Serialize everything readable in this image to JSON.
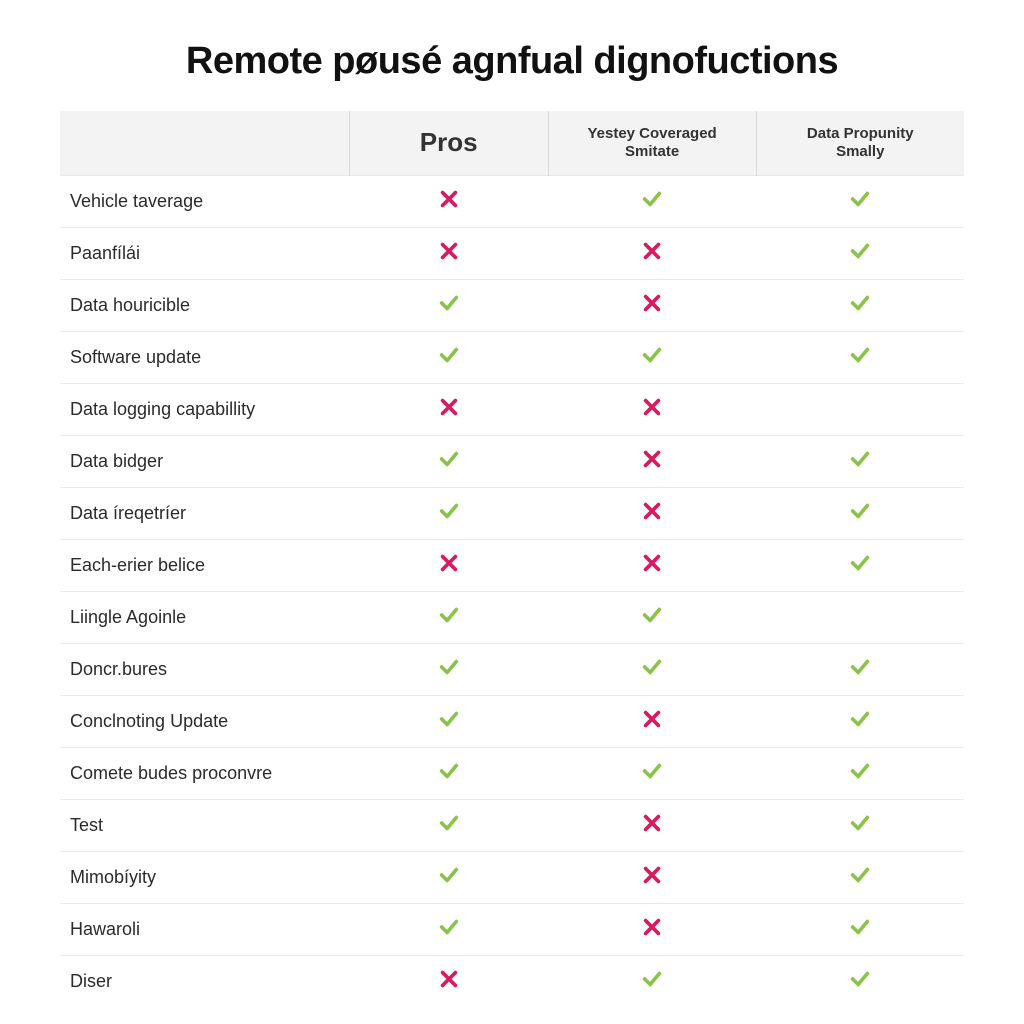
{
  "title": "Remote pøusé agnfual dignofuctions",
  "colors": {
    "check": "#8bc34a",
    "cross": "#d81b60",
    "header_bg": "#f3f3f3",
    "row_border": "#eaeaea",
    "text": "#1a1a1a",
    "header_text": "#333333",
    "header_divider": "#d9d9d9",
    "background": "#ffffff"
  },
  "table": {
    "columns": [
      {
        "key": "feature",
        "label": "",
        "width_pct": 32,
        "align": "left"
      },
      {
        "key": "pros",
        "label": "Pros",
        "width_pct": 22,
        "fontsize": 26
      },
      {
        "key": "colB",
        "label_line1": "Yestey Coveraged",
        "label_line2": "Smitate",
        "width_pct": 23,
        "fontsize": 15
      },
      {
        "key": "colC",
        "label_line1": "Data Propunity",
        "label_line2": "Smally",
        "width_pct": 23,
        "fontsize": 15
      }
    ],
    "rows": [
      {
        "feature": "Vehicle taverage",
        "pros": false,
        "colB": true,
        "colC": true
      },
      {
        "feature": "Paanfílái",
        "pros": false,
        "colB": false,
        "colC": true
      },
      {
        "feature": "Data houricible",
        "pros": true,
        "colB": false,
        "colC": true
      },
      {
        "feature": "Software update",
        "pros": true,
        "colB": true,
        "colC": true
      },
      {
        "feature": "Data logging capabillity",
        "pros": false,
        "colB": false,
        "colC": null
      },
      {
        "feature": "Data bidger",
        "pros": true,
        "colB": false,
        "colC": true
      },
      {
        "feature": "Data íreqetríer",
        "pros": true,
        "colB": false,
        "colC": true
      },
      {
        "feature": "Each-erier belice",
        "pros": false,
        "colB": false,
        "colC": true
      },
      {
        "feature": "Liingle Agoinle",
        "pros": true,
        "colB": true,
        "colC": null
      },
      {
        "feature": "Doncr.bures",
        "pros": true,
        "colB": true,
        "colC": true
      },
      {
        "feature": "Conclnoting Update",
        "pros": true,
        "colB": false,
        "colC": true
      },
      {
        "feature": "Comete budes proconvre",
        "pros": true,
        "colB": true,
        "colC": true
      },
      {
        "feature": "Test",
        "pros": true,
        "colB": false,
        "colC": true
      },
      {
        "feature": "Mimobíyity",
        "pros": true,
        "colB": false,
        "colC": true
      },
      {
        "feature": "Hawaroli",
        "pros": true,
        "colB": false,
        "colC": true
      },
      {
        "feature": "Diser",
        "pros": false,
        "colB": true,
        "colC": true
      }
    ]
  }
}
